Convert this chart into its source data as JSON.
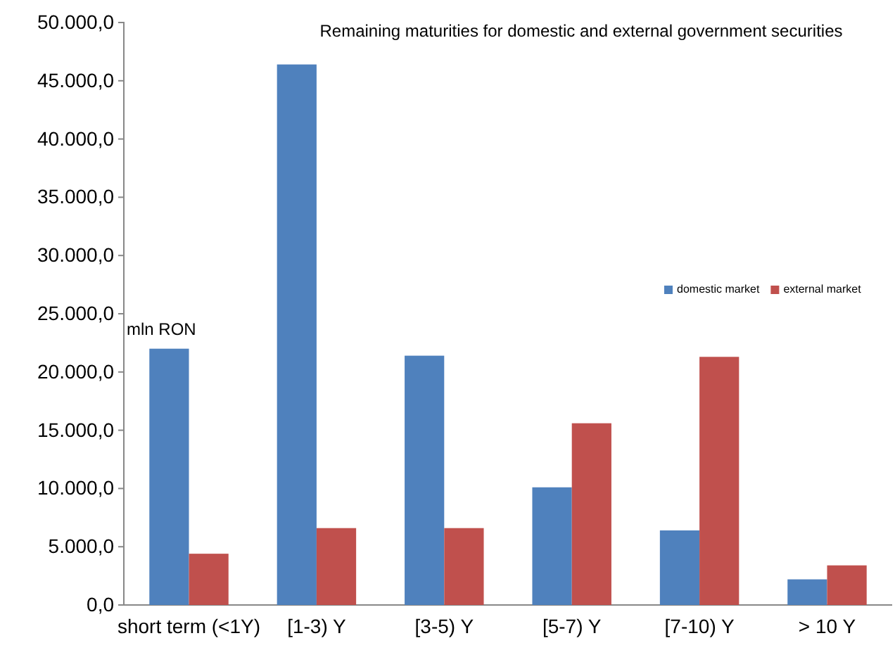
{
  "chart_data": {
    "type": "bar",
    "title": "Remaining maturities for domestic and external government securities",
    "ylabel": "mln RON",
    "categories": [
      "short term (<1Y)",
      "[1-3) Y",
      "[3-5) Y",
      "[5-7) Y",
      "[7-10) Y",
      "> 10 Y"
    ],
    "series": [
      {
        "name": "domestic market",
        "color": "#4f81bd",
        "values": [
          22000,
          46400,
          21400,
          10100,
          6400,
          2200
        ]
      },
      {
        "name": "external market",
        "color": "#c0504d",
        "values": [
          4400,
          6600,
          6600,
          15600,
          21300,
          3400
        ]
      }
    ],
    "ylim": [
      0,
      50000
    ],
    "yticks": [
      {
        "value": 0,
        "label": "0,0"
      },
      {
        "value": 5000,
        "label": "5.000,0"
      },
      {
        "value": 10000,
        "label": "10.000,0"
      },
      {
        "value": 15000,
        "label": "15.000,0"
      },
      {
        "value": 20000,
        "label": "20.000,0"
      },
      {
        "value": 25000,
        "label": "25.000,0"
      },
      {
        "value": 30000,
        "label": "30.000,0"
      },
      {
        "value": 35000,
        "label": "35.000,0"
      },
      {
        "value": 40000,
        "label": "40.000,0"
      },
      {
        "value": 45000,
        "label": "45.000,0"
      },
      {
        "value": 50000,
        "label": "50.000,0"
      }
    ],
    "grid": false,
    "legend": "right"
  }
}
